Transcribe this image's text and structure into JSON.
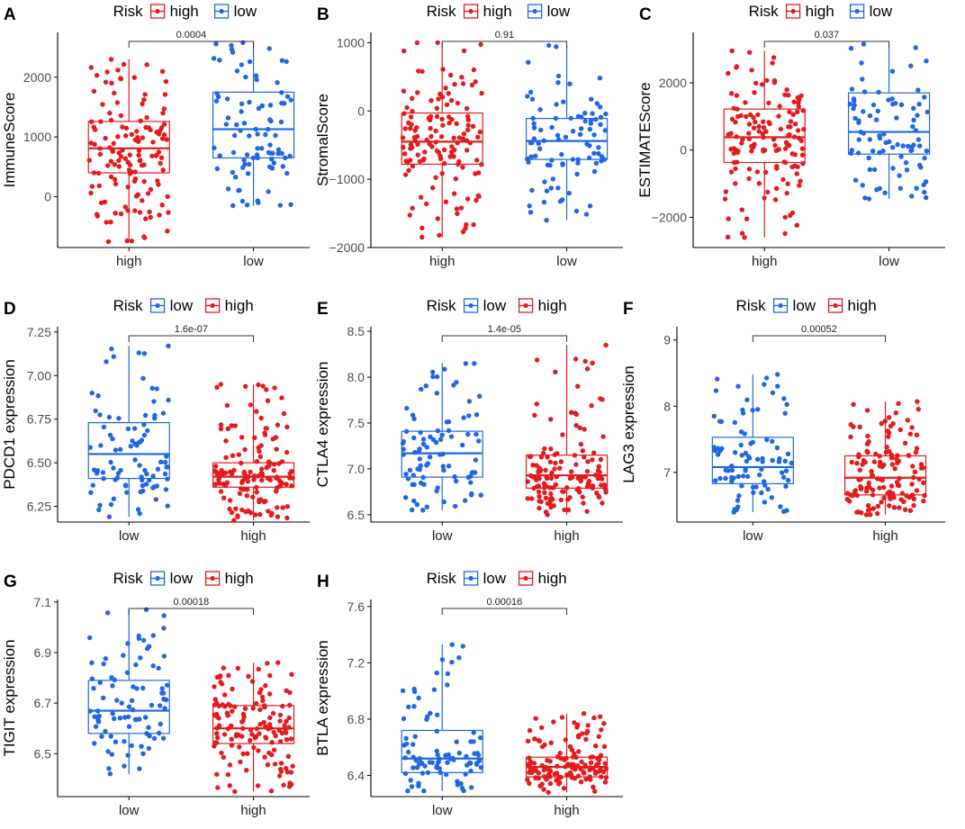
{
  "colors": {
    "high": "#E41A1C",
    "low": "#1F66E5",
    "axis": "#000000",
    "tick_text": "#4D4D4D"
  },
  "legend_title": "Risk",
  "chart_data": [
    {
      "panel": "A",
      "type": "box",
      "ylabel": "ImmuneScore",
      "ylim": [
        -850,
        2750
      ],
      "yticks": [
        0,
        1000,
        2000
      ],
      "ytick_labels": [
        "0",
        "1000",
        "2000"
      ],
      "legend_order": [
        "high",
        "low"
      ],
      "categories": [
        "high",
        "low"
      ],
      "pvalue": "0.0004",
      "boxes": [
        {
          "group": "high",
          "min": -750,
          "q1": 400,
          "median": 810,
          "q3": 1260,
          "max": 2300,
          "n": 140,
          "jitter_seed": 11
        },
        {
          "group": "low",
          "min": -150,
          "q1": 650,
          "median": 1130,
          "q3": 1750,
          "max": 2580,
          "n": 90,
          "jitter_seed": 12
        }
      ]
    },
    {
      "panel": "B",
      "type": "box",
      "ylabel": "StromalScore",
      "ylim": [
        -2000,
        1150
      ],
      "yticks": [
        -2000,
        -1000,
        0,
        1000
      ],
      "ytick_labels": [
        "−2000",
        "−1000",
        "0",
        "1000"
      ],
      "legend_order": [
        "high",
        "low"
      ],
      "categories": [
        "high",
        "low"
      ],
      "pvalue": "0.91",
      "boxes": [
        {
          "group": "high",
          "min": -1850,
          "q1": -780,
          "median": -450,
          "q3": -30,
          "max": 1000,
          "n": 140,
          "jitter_seed": 21
        },
        {
          "group": "low",
          "min": -1600,
          "q1": -710,
          "median": -440,
          "q3": -110,
          "max": 960,
          "n": 90,
          "jitter_seed": 22
        }
      ]
    },
    {
      "panel": "C",
      "type": "box",
      "ylabel": "ESTIMATEScore",
      "ylim": [
        -2900,
        3500
      ],
      "yticks": [
        -2000,
        0,
        2000
      ],
      "ytick_labels": [
        "−2000",
        "0",
        "2000"
      ],
      "legend_order": [
        "high",
        "low"
      ],
      "categories": [
        "high",
        "low"
      ],
      "pvalue": "0.037",
      "boxes": [
        {
          "group": "high",
          "min": -2600,
          "q1": -370,
          "median": 380,
          "q3": 1220,
          "max": 2950,
          "n": 140,
          "jitter_seed": 31
        },
        {
          "group": "low",
          "min": -1450,
          "q1": -120,
          "median": 540,
          "q3": 1700,
          "max": 3150,
          "n": 90,
          "jitter_seed": 32
        }
      ]
    },
    {
      "panel": "D",
      "type": "box",
      "ylabel": "PDCD1 expression",
      "ylim": [
        6.16,
        7.28
      ],
      "yticks": [
        6.25,
        6.5,
        6.75,
        7.0,
        7.25
      ],
      "ytick_labels": [
        "6.25",
        "6.50",
        "6.75",
        "7.00",
        "7.25"
      ],
      "legend_order": [
        "low",
        "high"
      ],
      "categories": [
        "low",
        "high"
      ],
      "pvalue": "1.6e-07",
      "boxes": [
        {
          "group": "low",
          "min": 6.19,
          "q1": 6.41,
          "median": 6.55,
          "q3": 6.73,
          "max": 7.17,
          "n": 90,
          "jitter_seed": 41
        },
        {
          "group": "high",
          "min": 6.17,
          "q1": 6.36,
          "median": 6.42,
          "q3": 6.5,
          "max": 6.95,
          "n": 140,
          "jitter_seed": 42
        }
      ]
    },
    {
      "panel": "E",
      "type": "box",
      "ylabel": "CTLA4 expression",
      "ylim": [
        6.42,
        8.55
      ],
      "yticks": [
        6.5,
        7.0,
        7.5,
        8.0,
        8.5
      ],
      "ytick_labels": [
        "6.5",
        "7.0",
        "7.5",
        "8.0",
        "8.5"
      ],
      "legend_order": [
        "low",
        "high"
      ],
      "categories": [
        "low",
        "high"
      ],
      "pvalue": "1.4e-05",
      "boxes": [
        {
          "group": "low",
          "min": 6.55,
          "q1": 6.91,
          "median": 7.17,
          "q3": 7.41,
          "max": 8.15,
          "n": 90,
          "jitter_seed": 51
        },
        {
          "group": "high",
          "min": 6.5,
          "q1": 6.79,
          "median": 6.93,
          "q3": 7.15,
          "max": 8.35,
          "n": 140,
          "jitter_seed": 52
        }
      ]
    },
    {
      "panel": "F",
      "type": "box",
      "ylabel": "LAG3 expression",
      "ylim": [
        6.25,
        9.2
      ],
      "yticks": [
        7,
        8,
        9
      ],
      "ytick_labels": [
        "7",
        "8",
        "9"
      ],
      "legend_order": [
        "low",
        "high"
      ],
      "categories": [
        "low",
        "high"
      ],
      "pvalue": "0.00052",
      "boxes": [
        {
          "group": "low",
          "min": 6.4,
          "q1": 6.83,
          "median": 7.08,
          "q3": 7.53,
          "max": 8.48,
          "n": 90,
          "jitter_seed": 61
        },
        {
          "group": "high",
          "min": 6.36,
          "q1": 6.66,
          "median": 6.92,
          "q3": 7.25,
          "max": 8.07,
          "n": 140,
          "jitter_seed": 62
        }
      ]
    },
    {
      "panel": "G",
      "type": "box",
      "ylabel": "TIGIT expression",
      "ylim": [
        6.33,
        7.11
      ],
      "yticks": [
        6.5,
        6.7,
        6.9,
        7.1
      ],
      "ytick_labels": [
        "6.5",
        "6.7",
        "6.9",
        "7.1"
      ],
      "legend_order": [
        "low",
        "high"
      ],
      "categories": [
        "low",
        "high"
      ],
      "pvalue": "0.00018",
      "boxes": [
        {
          "group": "low",
          "min": 6.42,
          "q1": 6.58,
          "median": 6.67,
          "q3": 6.79,
          "max": 7.07,
          "n": 90,
          "jitter_seed": 71
        },
        {
          "group": "high",
          "min": 6.35,
          "q1": 6.54,
          "median": 6.6,
          "q3": 6.69,
          "max": 6.86,
          "n": 140,
          "jitter_seed": 72
        }
      ]
    },
    {
      "panel": "H",
      "type": "box",
      "ylabel": "BTLA expression",
      "ylim": [
        6.25,
        7.65
      ],
      "yticks": [
        6.4,
        6.8,
        7.2,
        7.6
      ],
      "ytick_labels": [
        "6.4",
        "6.8",
        "7.2",
        "7.6"
      ],
      "legend_order": [
        "low",
        "high"
      ],
      "categories": [
        "low",
        "high"
      ],
      "pvalue": "0.00016",
      "boxes": [
        {
          "group": "low",
          "min": 6.29,
          "q1": 6.42,
          "median": 6.52,
          "q3": 6.72,
          "max": 7.33,
          "n": 90,
          "jitter_seed": 81
        },
        {
          "group": "high",
          "min": 6.28,
          "q1": 6.39,
          "median": 6.46,
          "q3": 6.53,
          "max": 6.84,
          "n": 140,
          "jitter_seed": 82
        }
      ]
    }
  ]
}
